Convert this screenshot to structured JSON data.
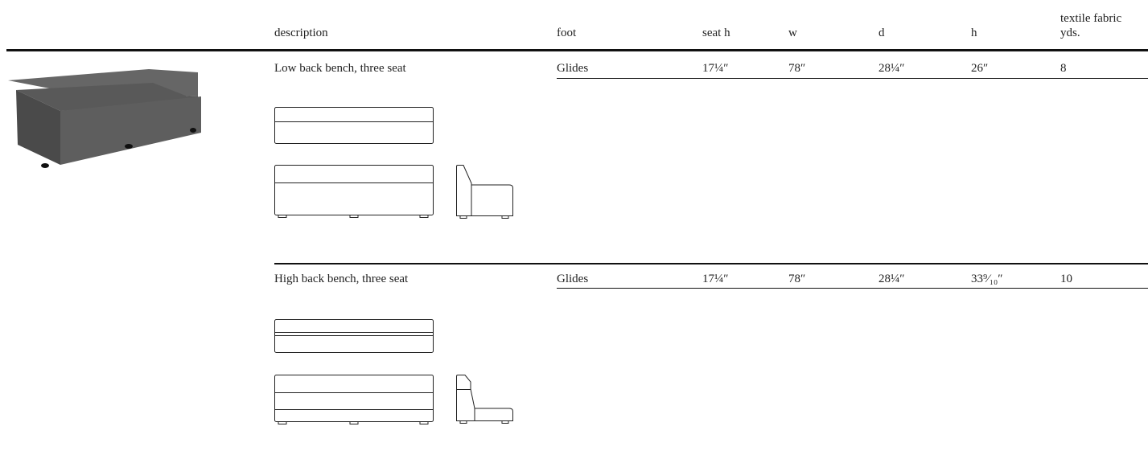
{
  "table": {
    "columns": [
      "description",
      "foot",
      "seat h",
      "w",
      "d",
      "h",
      "textile fabric yds."
    ],
    "rows": [
      [
        "Low back bench, three seat",
        "Glides",
        "17¼″",
        "78″",
        "28¼″",
        "26″",
        "8"
      ],
      [
        "High back bench, three seat",
        "Glides",
        "17¼″",
        "78″",
        "28¼″",
        "33⁹⁄₁₀″",
        "10"
      ]
    ]
  }
}
